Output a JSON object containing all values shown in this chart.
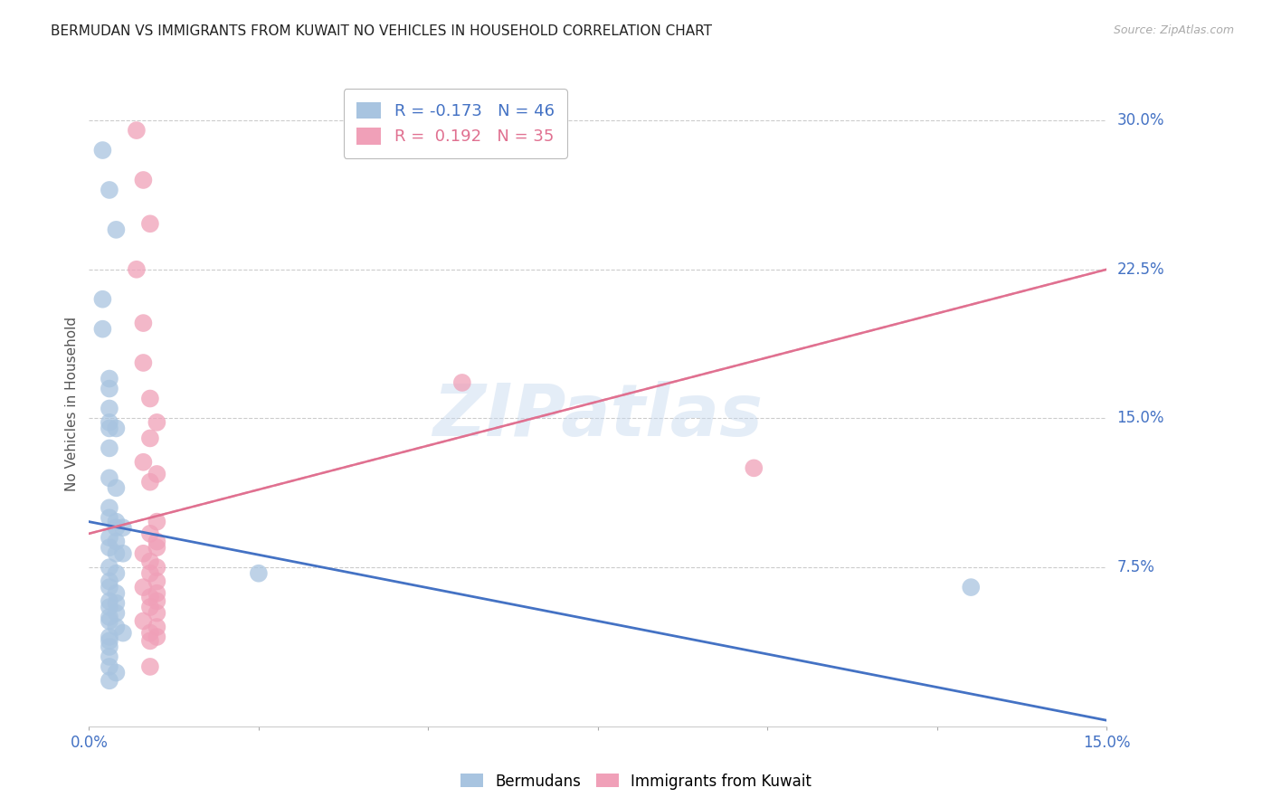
{
  "title": "BERMUDAN VS IMMIGRANTS FROM KUWAIT NO VEHICLES IN HOUSEHOLD CORRELATION CHART",
  "source": "Source: ZipAtlas.com",
  "ylabel": "No Vehicles in Household",
  "ytick_labels": [
    "30.0%",
    "22.5%",
    "15.0%",
    "7.5%"
  ],
  "ytick_values": [
    0.3,
    0.225,
    0.15,
    0.075
  ],
  "xlim": [
    0.0,
    0.15
  ],
  "ylim": [
    -0.005,
    0.32
  ],
  "legend_blue_r": "-0.173",
  "legend_blue_n": "46",
  "legend_pink_r": "0.192",
  "legend_pink_n": "35",
  "watermark": "ZIPatlas",
  "blue_color": "#a8c4e0",
  "pink_color": "#f0a0b8",
  "blue_line_color": "#4472c4",
  "pink_line_color": "#e07090",
  "blue_scatter": [
    [
      0.002,
      0.285
    ],
    [
      0.003,
      0.265
    ],
    [
      0.004,
      0.245
    ],
    [
      0.002,
      0.21
    ],
    [
      0.002,
      0.195
    ],
    [
      0.003,
      0.17
    ],
    [
      0.003,
      0.165
    ],
    [
      0.003,
      0.155
    ],
    [
      0.003,
      0.148
    ],
    [
      0.003,
      0.145
    ],
    [
      0.004,
      0.145
    ],
    [
      0.003,
      0.135
    ],
    [
      0.003,
      0.12
    ],
    [
      0.004,
      0.115
    ],
    [
      0.003,
      0.105
    ],
    [
      0.003,
      0.1
    ],
    [
      0.004,
      0.098
    ],
    [
      0.004,
      0.095
    ],
    [
      0.005,
      0.095
    ],
    [
      0.003,
      0.09
    ],
    [
      0.004,
      0.088
    ],
    [
      0.003,
      0.085
    ],
    [
      0.004,
      0.082
    ],
    [
      0.005,
      0.082
    ],
    [
      0.003,
      0.075
    ],
    [
      0.004,
      0.072
    ],
    [
      0.003,
      0.068
    ],
    [
      0.003,
      0.065
    ],
    [
      0.004,
      0.062
    ],
    [
      0.003,
      0.058
    ],
    [
      0.004,
      0.057
    ],
    [
      0.003,
      0.055
    ],
    [
      0.004,
      0.052
    ],
    [
      0.003,
      0.05
    ],
    [
      0.003,
      0.048
    ],
    [
      0.004,
      0.045
    ],
    [
      0.005,
      0.042
    ],
    [
      0.003,
      0.04
    ],
    [
      0.003,
      0.038
    ],
    [
      0.003,
      0.035
    ],
    [
      0.003,
      0.03
    ],
    [
      0.003,
      0.025
    ],
    [
      0.004,
      0.022
    ],
    [
      0.003,
      0.018
    ],
    [
      0.025,
      0.072
    ],
    [
      0.13,
      0.065
    ]
  ],
  "pink_scatter": [
    [
      0.007,
      0.295
    ],
    [
      0.008,
      0.27
    ],
    [
      0.009,
      0.248
    ],
    [
      0.007,
      0.225
    ],
    [
      0.008,
      0.198
    ],
    [
      0.008,
      0.178
    ],
    [
      0.009,
      0.16
    ],
    [
      0.01,
      0.148
    ],
    [
      0.009,
      0.14
    ],
    [
      0.008,
      0.128
    ],
    [
      0.01,
      0.122
    ],
    [
      0.009,
      0.118
    ],
    [
      0.01,
      0.098
    ],
    [
      0.009,
      0.092
    ],
    [
      0.01,
      0.088
    ],
    [
      0.01,
      0.085
    ],
    [
      0.008,
      0.082
    ],
    [
      0.009,
      0.078
    ],
    [
      0.01,
      0.075
    ],
    [
      0.009,
      0.072
    ],
    [
      0.01,
      0.068
    ],
    [
      0.008,
      0.065
    ],
    [
      0.01,
      0.062
    ],
    [
      0.009,
      0.06
    ],
    [
      0.01,
      0.058
    ],
    [
      0.009,
      0.055
    ],
    [
      0.01,
      0.052
    ],
    [
      0.008,
      0.048
    ],
    [
      0.01,
      0.045
    ],
    [
      0.009,
      0.042
    ],
    [
      0.01,
      0.04
    ],
    [
      0.009,
      0.038
    ],
    [
      0.009,
      0.025
    ],
    [
      0.055,
      0.168
    ],
    [
      0.098,
      0.125
    ]
  ],
  "blue_line_x": [
    0.0,
    0.15
  ],
  "blue_line_y": [
    0.098,
    -0.002
  ],
  "pink_line_x": [
    0.0,
    0.15
  ],
  "pink_line_y": [
    0.092,
    0.225
  ],
  "grid_color": "#cccccc",
  "background_color": "#ffffff",
  "title_fontsize": 11,
  "axis_label_color": "#4472c4",
  "scatter_size": 200
}
